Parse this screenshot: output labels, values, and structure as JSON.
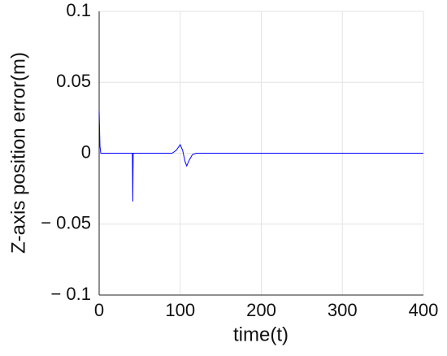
{
  "chart_data": {
    "type": "line",
    "x_label": "time(t)",
    "y_label": "Z-axis position error(m)",
    "x": [
      0,
      1,
      2,
      41,
      41.5,
      42,
      90,
      95,
      100,
      103,
      106,
      108,
      111,
      115,
      120,
      400
    ],
    "values": [
      0.03,
      0.005,
      0,
      0,
      -0.034,
      0,
      0,
      0.002,
      0.006,
      0.002,
      -0.006,
      -0.009,
      -0.005,
      -0.001,
      0,
      0
    ],
    "color": "#0000ff",
    "xlim": [
      0,
      400
    ],
    "xticks": [
      0,
      100,
      200,
      300,
      400
    ],
    "ylim": [
      -0.1,
      0.1
    ],
    "yticks": [
      {
        "value": -0.1,
        "label": "− 0.1"
      },
      {
        "value": -0.05,
        "label": "− 0.05"
      },
      0,
      0.05,
      0.1
    ],
    "grid": true
  }
}
